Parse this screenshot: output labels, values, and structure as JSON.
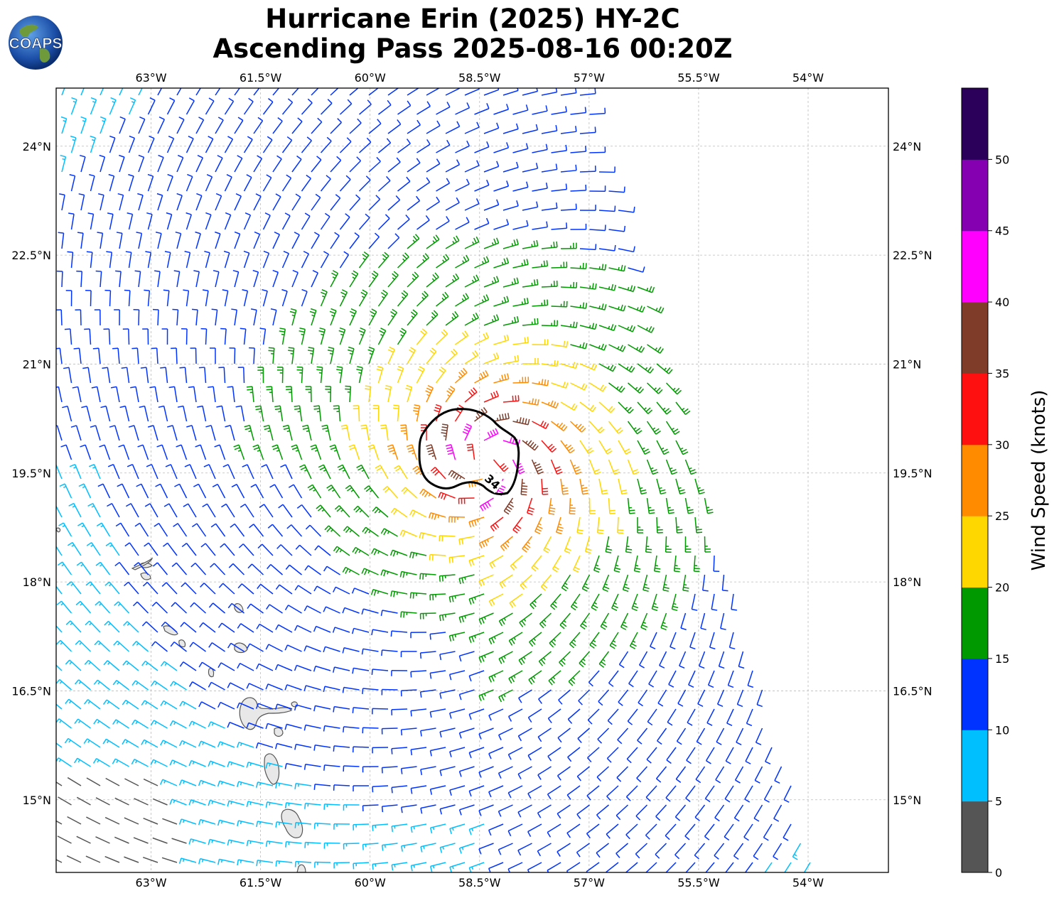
{
  "title": {
    "line1": "Hurricane Erin (2025) HY-2C",
    "line2": "Ascending Pass 2025-08-16 00:20Z"
  },
  "logo": {
    "text": "COAPS"
  },
  "map": {
    "lon_range": [
      -64.3,
      -52.9
    ],
    "lat_range": [
      14.0,
      24.8
    ],
    "lon_ticks": [
      "63°W",
      "61.5°W",
      "60°W",
      "58.5°W",
      "57°W",
      "55.5°W",
      "54°W"
    ],
    "lat_ticks": [
      "24°N",
      "22.5°N",
      "21°N",
      "19.5°N",
      "18°N",
      "16.5°N",
      "15°N"
    ],
    "grid": true,
    "storm_center": {
      "lon": -58.6,
      "lat": 19.5
    },
    "contour": {
      "label": "34",
      "value": 34,
      "units": "knots",
      "color": "#000000"
    }
  },
  "colorbar": {
    "label": "Wind Speed (knots)",
    "ticks": [
      "0",
      "5",
      "10",
      "15",
      "20",
      "25",
      "30",
      "35",
      "40",
      "45",
      "50"
    ],
    "bins": [
      {
        "min": 0,
        "max": 5,
        "color": "#555555"
      },
      {
        "min": 5,
        "max": 10,
        "color": "#00bfff"
      },
      {
        "min": 10,
        "max": 15,
        "color": "#0033ff"
      },
      {
        "min": 15,
        "max": 20,
        "color": "#009900"
      },
      {
        "min": 20,
        "max": 25,
        "color": "#ffd700"
      },
      {
        "min": 25,
        "max": 30,
        "color": "#ff8c00"
      },
      {
        "min": 30,
        "max": 35,
        "color": "#ff1010"
      },
      {
        "min": 35,
        "max": 40,
        "color": "#7f3c28"
      },
      {
        "min": 40,
        "max": 45,
        "color": "#ff00ff"
      },
      {
        "min": 45,
        "max": 50,
        "color": "#8400b0"
      },
      {
        "min": 50,
        "max": 55,
        "color": "#2a005a"
      }
    ]
  }
}
